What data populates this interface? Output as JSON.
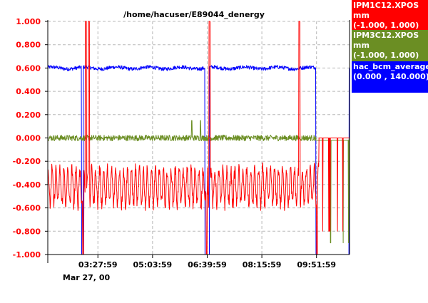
{
  "chart_data": {
    "type": "line",
    "title": "/home/hacuser/E89044_denergy",
    "y_ticks": [
      "1.000",
      "0.800",
      "0.600",
      "0.400",
      "0.200",
      "0.000",
      "-0.200",
      "-0.400",
      "-0.600",
      "-0.800",
      "-1.000"
    ],
    "ylim": [
      -1.0,
      1.0
    ],
    "x_ticks": [
      "03:27:59",
      "05:03:59",
      "06:39:59",
      "08:15:59",
      "09:51:59"
    ],
    "x_date": "Mar 27, 00",
    "x_start": "01:59:59",
    "x_end": "10:49:59",
    "grid": true,
    "legend_placement": "right",
    "series": [
      {
        "name": "IPM1C12.XPOS",
        "unit": "mm",
        "range": "(-1.000,  1.000)",
        "color": "#ff0000",
        "baseline": -0.42,
        "amplitude": 0.15,
        "noise": 0.06,
        "approx_range": [
          -0.65,
          -0.15
        ],
        "spikes_to_max_at": [
          "03:07",
          "03:12",
          "06:44",
          "09:22"
        ],
        "dropouts_at": [
          "03:02",
          "06:39",
          "09:53"
        ]
      },
      {
        "name": "IPM3C12.XPOS",
        "unit": "mm",
        "range": "(-1.000,  1.000)",
        "color": "#6b8e23",
        "baseline": 0.0,
        "noise": 0.025,
        "approx_range": [
          -0.06,
          0.06
        ],
        "spike_at": [
          "06:13",
          "06:28"
        ]
      },
      {
        "name": "hac_bcm_average",
        "unit": "",
        "range": "(0.000 ,  140.000)",
        "color": "#0000ff",
        "baseline_value": 112.0,
        "approx_range": [
          110.6,
          115.5
        ],
        "trips_to_zero": [
          [
            "02:59",
            "03:02"
          ],
          [
            "06:36",
            "06:44"
          ],
          [
            "09:51",
            "10:49"
          ]
        ]
      }
    ]
  }
}
